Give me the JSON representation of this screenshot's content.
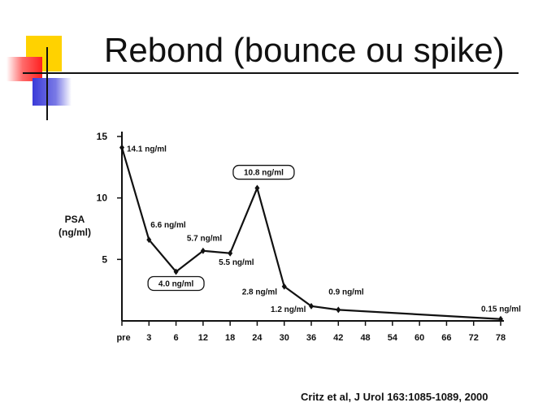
{
  "slide": {
    "title": "Rebond (bounce ou spike)",
    "citation": "Critz et al, J Urol 163:1085-1089, 2000",
    "accent_colors": {
      "yellow": "#ffd200",
      "red": "#ff2020",
      "blue": "#3a3ad8"
    }
  },
  "chart_data": {
    "type": "line",
    "title": "",
    "xlabel": "",
    "ylabel": "PSA (ng/ml)",
    "ylabel_lines": [
      "PSA",
      "(ng/ml)"
    ],
    "x_ticks": [
      "pre",
      "3",
      "6",
      "12",
      "18",
      "24",
      "30",
      "36",
      "42",
      "48",
      "54",
      "60",
      "66",
      "72",
      "78"
    ],
    "y_ticks": [
      5,
      10,
      15
    ],
    "ylim": [
      0,
      15
    ],
    "grid": false,
    "series": [
      {
        "values": [
          {
            "x": "pre",
            "y": 14.1
          },
          {
            "x": "3",
            "y": 6.6
          },
          {
            "x": "6",
            "y": 4.0
          },
          {
            "x": "12",
            "y": 5.7
          },
          {
            "x": "18",
            "y": 5.5
          },
          {
            "x": "24",
            "y": 10.8
          },
          {
            "x": "30",
            "y": 2.8
          },
          {
            "x": "36",
            "y": 1.2
          },
          {
            "x": "42",
            "y": 0.9
          },
          {
            "x": "78",
            "y": 0.15
          }
        ]
      }
    ],
    "annotations": [
      {
        "x": "pre",
        "text": "14.1 ng/ml",
        "boxed": false
      },
      {
        "x": "3",
        "text": "6.6 ng/ml",
        "boxed": false
      },
      {
        "x": "6",
        "text": "4.0 ng/ml",
        "boxed": true
      },
      {
        "x": "12",
        "text": "5.7 ng/ml",
        "boxed": false
      },
      {
        "x": "18",
        "text": "5.5 ng/ml",
        "boxed": false
      },
      {
        "x": "24",
        "text": "10.8 ng/ml",
        "boxed": true
      },
      {
        "x": "30",
        "text": "2.8 ng/ml",
        "boxed": false
      },
      {
        "x": "36",
        "text": "1.2 ng/ml",
        "boxed": false
      },
      {
        "x": "42",
        "text": "0.9 ng/ml",
        "boxed": false
      },
      {
        "x": "78",
        "text": "0.15 ng/ml",
        "boxed": false
      }
    ]
  }
}
